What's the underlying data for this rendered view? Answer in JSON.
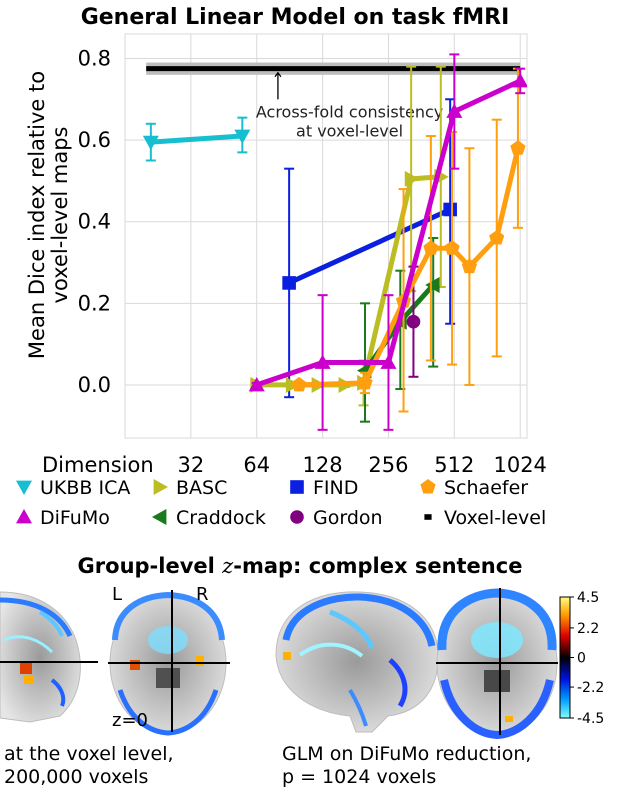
{
  "chart_data": {
    "type": "line",
    "title": "General Linear Model on task fMRI",
    "ylabel_line1": "Mean Dice index relative to",
    "ylabel_line2": "voxel-level maps",
    "xlabel": "Dimension",
    "x_scale": "log2",
    "xlim": [
      16,
      1100
    ],
    "ylim": [
      -0.13,
      0.86
    ],
    "y_ticks": [
      0.0,
      0.2,
      0.4,
      0.6,
      0.8
    ],
    "y_tick_labels": [
      "0.0",
      "0.2",
      "0.4",
      "0.6",
      "0.8"
    ],
    "x_ticks": [
      32,
      64,
      128,
      256,
      512,
      1024
    ],
    "x_tick_labels": [
      "32",
      "64",
      "128",
      "256",
      "512",
      "1024"
    ],
    "grid": true,
    "reference": {
      "name": "Voxel-level",
      "y": 0.775,
      "band": [
        0.76,
        0.79
      ],
      "color": "#000000"
    },
    "annotation": {
      "line1": "Across-fold consistency",
      "line2": "at voxel-level",
      "arrow_x": 80,
      "arrow_to_y": 0.765,
      "text_y": 0.69
    },
    "series": [
      {
        "name": "UKBB ICA",
        "color": "#17becf",
        "marker": "tri_down",
        "points": [
          [
            21,
            0.595,
            0.55,
            0.64
          ],
          [
            55,
            0.61,
            0.57,
            0.655
          ]
        ]
      },
      {
        "name": "FIND",
        "color": "#0b1fe0",
        "marker": "square",
        "points": [
          [
            90,
            0.25,
            -0.03,
            0.53
          ],
          [
            490,
            0.43,
            0.15,
            0.7
          ]
        ]
      },
      {
        "name": "BASC",
        "color": "#bcbd22",
        "marker": "tri_right",
        "points": [
          [
            64,
            0.0,
            -0.005,
            0.005
          ],
          [
            93,
            0.0,
            -0.005,
            0.005
          ],
          [
            122,
            0.0,
            -0.005,
            0.005
          ],
          [
            162,
            0.0,
            -0.005,
            0.005
          ],
          [
            197,
            0.005,
            -0.05,
            0.06
          ],
          [
            325,
            0.505,
            0.23,
            0.78
          ],
          [
            444,
            0.51,
            0.24,
            0.78
          ]
        ]
      },
      {
        "name": "Craddock",
        "color": "#1a7a1a",
        "marker": "tri_left",
        "points": [
          [
            200,
            0.035,
            -0.09,
            0.2
          ],
          [
            290,
            0.155,
            -0.01,
            0.28
          ],
          [
            410,
            0.245,
            0.045,
            0.36
          ]
        ]
      },
      {
        "name": "Gordon",
        "color": "#800080",
        "marker": "circle",
        "points": [
          [
            333,
            0.155,
            0.02,
            0.29
          ]
        ]
      },
      {
        "name": "Schaefer",
        "color": "#ff9f10",
        "marker": "pentagon",
        "points": [
          [
            100,
            0.0,
            -0.005,
            0.005
          ],
          [
            200,
            0.005,
            -0.02,
            0.03
          ],
          [
            300,
            0.205,
            -0.065,
            0.48
          ],
          [
            400,
            0.335,
            0.06,
            0.61
          ],
          [
            500,
            0.335,
            0.05,
            0.62
          ],
          [
            600,
            0.29,
            0.0,
            0.58
          ],
          [
            800,
            0.36,
            0.07,
            0.65
          ],
          [
            1000,
            0.58,
            0.385,
            0.775
          ]
        ]
      },
      {
        "name": "DiFuMo",
        "color": "#cc00cc",
        "marker": "tri_up",
        "points": [
          [
            64,
            0.0,
            -0.005,
            0.005
          ],
          [
            128,
            0.055,
            -0.11,
            0.22
          ],
          [
            256,
            0.055,
            -0.11,
            0.22
          ],
          [
            512,
            0.67,
            0.53,
            0.81
          ],
          [
            1024,
            0.745,
            0.715,
            0.775
          ]
        ]
      }
    ],
    "legend": {
      "placement": "below-chart",
      "rows": [
        [
          {
            "name": "UKBB ICA",
            "marker": "tri_down",
            "color": "#17becf"
          },
          {
            "name": "BASC",
            "marker": "tri_right",
            "color": "#bcbd22"
          },
          {
            "name": "FIND",
            "marker": "square",
            "color": "#0b1fe0"
          },
          {
            "name": "Schaefer",
            "marker": "pentagon",
            "color": "#ff9f10"
          }
        ],
        [
          {
            "name": "DiFuMo",
            "marker": "tri_up",
            "color": "#cc00cc"
          },
          {
            "name": "Craddock",
            "marker": "tri_left",
            "color": "#1a7a1a"
          },
          {
            "name": "Gordon",
            "marker": "circle",
            "color": "#800080"
          },
          {
            "name": "Voxel-level",
            "marker": "dash",
            "color": "#000000"
          }
        ]
      ]
    }
  },
  "brain_panel": {
    "title_pre": "Group-level ",
    "title_var": "z",
    "title_post": "-map: complex sentence",
    "left_label": "L",
    "right_label": "R",
    "slice_label": "z=0",
    "caption_left_1": "at the voxel level,",
    "caption_left_2": "200,000 voxels",
    "caption_right_1": "GLM on DiFuMo reduction,",
    "caption_right_2": "p = 1024 voxels",
    "colorbar_ticks": [
      "4.5",
      "2.2",
      "0",
      "-2.2",
      "-4.5"
    ],
    "colorbar_values": [
      4.5,
      2.2,
      0,
      -2.2,
      -4.5
    ]
  }
}
